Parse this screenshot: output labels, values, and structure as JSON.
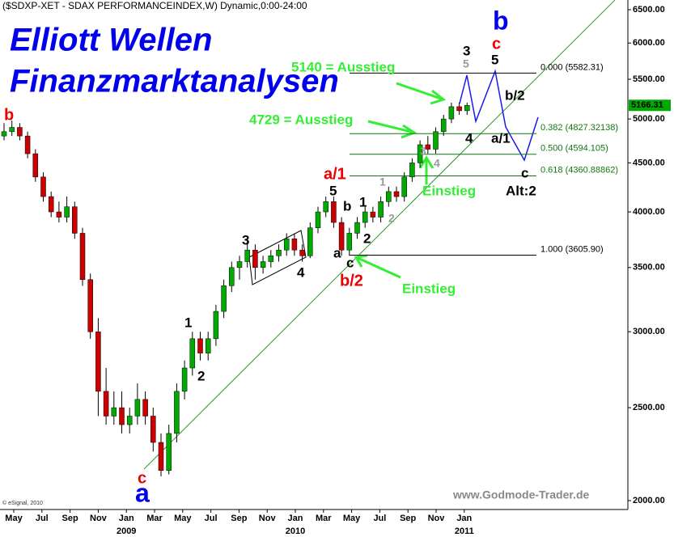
{
  "chart_data": {
    "type": "candlestick",
    "title": "($SDXP-XET - SDAX PERFORMANCEINDEX,W) Dynamic,0:00-24:00",
    "headings": [
      "Elliott Wellen",
      "Finanzmarktanalysen"
    ],
    "watermark": "www.Godmode-Trader.de",
    "copyright": "© eSignal, 2010",
    "log_scale": true,
    "up_color": "#00aa00",
    "down_color": "#cc0000",
    "ylim": [
      2000,
      6500
    ],
    "yticks": [
      {
        "value": 2000,
        "label": "2000.00"
      },
      {
        "value": 2500,
        "label": "2500.00"
      },
      {
        "value": 3000,
        "label": "3000.00"
      },
      {
        "value": 3500,
        "label": "3500.00"
      },
      {
        "value": 4000,
        "label": "4000.00"
      },
      {
        "value": 4500,
        "label": "4500.00"
      },
      {
        "value": 5000,
        "label": "5000.00"
      },
      {
        "value": 5500,
        "label": "5500.00"
      },
      {
        "value": 6000,
        "label": "6000.00"
      },
      {
        "value": 6500,
        "label": "6500.00"
      }
    ],
    "last_value": 5166.31,
    "x_labels": [
      "May",
      "Jul",
      "Sep",
      "Nov",
      "Jan",
      "Mar",
      "May",
      "Jul",
      "Sep",
      "Nov",
      "Jan",
      "Mar",
      "May",
      "Jul",
      "Sep",
      "Nov",
      "Jan"
    ],
    "years": [
      "2009",
      "2010",
      "2011"
    ],
    "ohlc": [
      [
        4800,
        4950,
        4750,
        4850
      ],
      [
        4850,
        4980,
        4800,
        4900
      ],
      [
        4900,
        4950,
        4750,
        4800
      ],
      [
        4800,
        4850,
        4550,
        4600
      ],
      [
        4600,
        4650,
        4300,
        4350
      ],
      [
        4350,
        4400,
        4100,
        4150
      ],
      [
        4150,
        4200,
        3950,
        4000
      ],
      [
        4000,
        4100,
        3900,
        3950
      ],
      [
        3950,
        4150,
        3900,
        4050
      ],
      [
        4050,
        4100,
        3750,
        3800
      ],
      [
        3800,
        3850,
        3350,
        3400
      ],
      [
        3400,
        3450,
        2950,
        3000
      ],
      [
        3000,
        3100,
        2450,
        2600
      ],
      [
        2600,
        2750,
        2400,
        2450
      ],
      [
        2450,
        2600,
        2400,
        2500
      ],
      [
        2500,
        2600,
        2350,
        2400
      ],
      [
        2400,
        2500,
        2350,
        2450
      ],
      [
        2450,
        2650,
        2400,
        2550
      ],
      [
        2550,
        2600,
        2400,
        2450
      ],
      [
        2450,
        2500,
        2250,
        2300
      ],
      [
        2300,
        2350,
        2120,
        2150
      ],
      [
        2150,
        2400,
        2130,
        2350
      ],
      [
        2350,
        2650,
        2300,
        2600
      ],
      [
        2600,
        2800,
        2550,
        2750
      ],
      [
        2750,
        3000,
        2700,
        2950
      ],
      [
        2950,
        3000,
        2800,
        2850
      ],
      [
        2850,
        3000,
        2800,
        2950
      ],
      [
        2950,
        3200,
        2900,
        3150
      ],
      [
        3150,
        3400,
        3100,
        3350
      ],
      [
        3350,
        3550,
        3300,
        3500
      ],
      [
        3500,
        3600,
        3400,
        3550
      ],
      [
        3550,
        3750,
        3500,
        3650
      ],
      [
        3650,
        3700,
        3400,
        3500
      ],
      [
        3500,
        3600,
        3450,
        3550
      ],
      [
        3550,
        3650,
        3500,
        3600
      ],
      [
        3600,
        3700,
        3550,
        3650
      ],
      [
        3650,
        3800,
        3600,
        3750
      ],
      [
        3750,
        3800,
        3600,
        3650
      ],
      [
        3650,
        3700,
        3550,
        3600
      ],
      [
        3600,
        3900,
        3580,
        3850
      ],
      [
        3850,
        4050,
        3800,
        4000
      ],
      [
        4000,
        4150,
        3950,
        4100
      ],
      [
        4100,
        4150,
        3850,
        3900
      ],
      [
        3900,
        3950,
        3600,
        3650
      ],
      [
        3650,
        3850,
        3600,
        3800
      ],
      [
        3800,
        3950,
        3750,
        3900
      ],
      [
        3900,
        4050,
        3850,
        4000
      ],
      [
        4000,
        4050,
        3900,
        3950
      ],
      [
        3950,
        4150,
        3900,
        4100
      ],
      [
        4100,
        4250,
        4050,
        4200
      ],
      [
        4200,
        4250,
        4100,
        4150
      ],
      [
        4150,
        4400,
        4100,
        4350
      ],
      [
        4350,
        4550,
        4300,
        4500
      ],
      [
        4500,
        4750,
        4450,
        4700
      ],
      [
        4700,
        4800,
        4600,
        4650
      ],
      [
        4650,
        4900,
        4600,
        4850
      ],
      [
        4850,
        5050,
        4800,
        5000
      ],
      [
        5000,
        5200,
        4950,
        5150
      ],
      [
        5150,
        5200,
        5050,
        5100
      ],
      [
        5100,
        5200,
        5050,
        5166.31
      ]
    ],
    "fib_levels": [
      {
        "value": 5582.31,
        "label": "0.000 (5582.31)",
        "color": "#000000"
      },
      {
        "value": 4827.32138,
        "label": "0.382 (4827.32138)",
        "color": "#117711"
      },
      {
        "value": 4594.105,
        "label": "0.500 (4594.105)",
        "color": "#117711"
      },
      {
        "value": 4360.88862,
        "label": "0.618 (4360.88862)",
        "color": "#117711"
      },
      {
        "value": 3605.9,
        "label": "1.000 (3605.90)",
        "color": "#000000"
      }
    ],
    "annotations": [
      {
        "text": "b",
        "color": "#ee0000"
      },
      {
        "text": "c",
        "color": "#ee0000"
      },
      {
        "text": "a",
        "color": "#0000ee"
      },
      {
        "text": "1",
        "color": "#000000"
      },
      {
        "text": "2",
        "color": "#000000"
      },
      {
        "text": "3",
        "color": "#000000"
      },
      {
        "text": "4",
        "color": "#000000"
      },
      {
        "text": "5",
        "color": "#000000"
      },
      {
        "text": "a/1",
        "color": "#ee0000"
      },
      {
        "text": "b",
        "color": "#000000"
      },
      {
        "text": "1",
        "color": "#000000"
      },
      {
        "text": "2",
        "color": "#000000"
      },
      {
        "text": "a",
        "color": "#000000"
      },
      {
        "text": "c",
        "color": "#000000"
      },
      {
        "text": "b/2",
        "color": "#ee0000"
      },
      {
        "text": "1",
        "color": "#999999"
      },
      {
        "text": "2",
        "color": "#999999"
      },
      {
        "text": "3",
        "color": "#999999"
      },
      {
        "text": "4",
        "color": "#999999"
      },
      {
        "text": "5",
        "color": "#999999"
      },
      {
        "text": "3",
        "color": "#000000"
      },
      {
        "text": "4",
        "color": "#000000"
      },
      {
        "text": "c",
        "color": "#ee0000"
      },
      {
        "text": "5",
        "color": "#000000"
      },
      {
        "text": "b",
        "color": "#0000ee"
      },
      {
        "text": "b/2",
        "color": "#000000"
      },
      {
        "text": "a/1",
        "color": "#000000"
      },
      {
        "text": "c",
        "color": "#000000"
      },
      {
        "text": "Alt:2",
        "color": "#000000"
      },
      {
        "text": "5140 = Ausstieg",
        "color": "#33ee33"
      },
      {
        "text": "4729 = Ausstieg",
        "color": "#33ee33"
      },
      {
        "text": "Einstieg",
        "color": "#33ee33"
      },
      {
        "text": "Einstieg",
        "color": "#33ee33"
      }
    ]
  }
}
